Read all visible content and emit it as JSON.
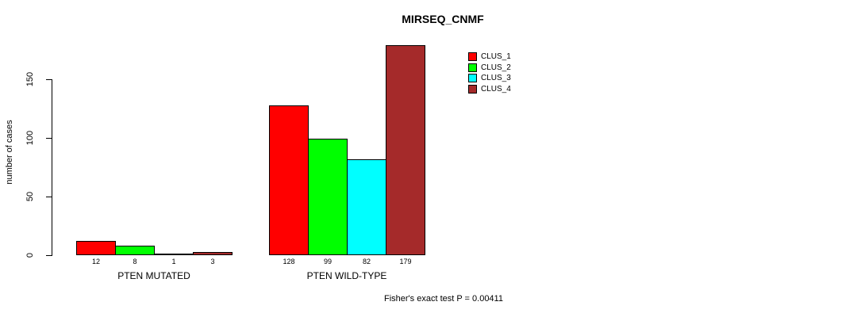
{
  "chart_data": {
    "type": "bar",
    "title": "MIRSEQ_CNMF",
    "xlabel": "",
    "ylabel": "number of cases",
    "categories": [
      "PTEN MUTATED",
      "PTEN WILD-TYPE"
    ],
    "series": [
      {
        "name": "CLUS_1",
        "color": "#FF0000",
        "values": [
          12,
          128
        ]
      },
      {
        "name": "CLUS_2",
        "color": "#00FF00",
        "values": [
          8,
          99
        ]
      },
      {
        "name": "CLUS_3",
        "color": "#00FFFF",
        "values": [
          1,
          82
        ]
      },
      {
        "name": "CLUS_4",
        "color": "#A52A2A",
        "values": [
          3,
          179
        ]
      }
    ],
    "bar_value_labels": [
      [
        "12",
        "8",
        "1",
        "3"
      ],
      [
        "128",
        "99",
        "82",
        "179"
      ]
    ],
    "yticks": [
      0,
      50,
      100,
      150
    ],
    "ylim": [
      0,
      185
    ],
    "grid": false,
    "legend_position": "top-right",
    "legend_entries": [
      "CLUS_1",
      "CLUS_2",
      "CLUS_3",
      "CLUS_4"
    ],
    "annotation": "Fisher's exact test P = 0.00411",
    "axis_color": "#000000",
    "bar_border_color": "#000000",
    "background_color": "#FFFFFF"
  }
}
